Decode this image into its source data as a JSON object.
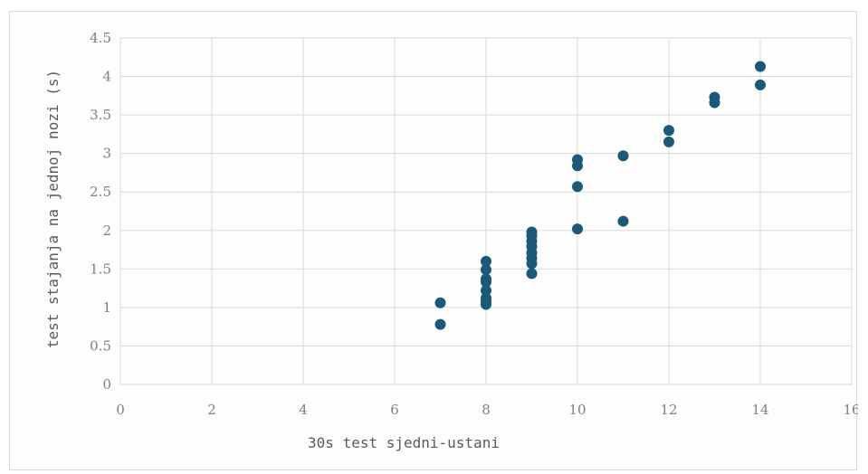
{
  "chart_data": {
    "type": "scatter",
    "title": "",
    "xlabel": "30s test sjedni-ustani",
    "ylabel": "test stajanja na jednoj nozi (s)",
    "xlim": [
      0,
      16
    ],
    "ylim": [
      0,
      4.5
    ],
    "grid": true,
    "x_ticks": [
      "0",
      "2",
      "4",
      "6",
      "8",
      "10",
      "12",
      "14",
      "16"
    ],
    "y_ticks": [
      "0",
      "0.5",
      "1",
      "1.5",
      "2",
      "2.5",
      "3",
      "3.5",
      "4",
      "4.5"
    ],
    "color": "#1a5a78",
    "points": [
      {
        "x": 7,
        "y": 1.06
      },
      {
        "x": 7,
        "y": 0.78
      },
      {
        "x": 8,
        "y": 1.6
      },
      {
        "x": 8,
        "y": 1.49
      },
      {
        "x": 8,
        "y": 1.37
      },
      {
        "x": 8,
        "y": 1.33
      },
      {
        "x": 8,
        "y": 1.22
      },
      {
        "x": 8,
        "y": 1.12
      },
      {
        "x": 8,
        "y": 1.08
      },
      {
        "x": 8,
        "y": 1.04
      },
      {
        "x": 9,
        "y": 1.98
      },
      {
        "x": 9,
        "y": 1.93
      },
      {
        "x": 9,
        "y": 1.86
      },
      {
        "x": 9,
        "y": 1.79
      },
      {
        "x": 9,
        "y": 1.71
      },
      {
        "x": 9,
        "y": 1.64
      },
      {
        "x": 9,
        "y": 1.57
      },
      {
        "x": 9,
        "y": 1.44
      },
      {
        "x": 10,
        "y": 2.92
      },
      {
        "x": 10,
        "y": 2.84
      },
      {
        "x": 10,
        "y": 2.57
      },
      {
        "x": 10,
        "y": 2.02
      },
      {
        "x": 11,
        "y": 2.97
      },
      {
        "x": 11,
        "y": 2.12
      },
      {
        "x": 12,
        "y": 3.3
      },
      {
        "x": 12,
        "y": 3.15
      },
      {
        "x": 13,
        "y": 3.73
      },
      {
        "x": 13,
        "y": 3.66
      },
      {
        "x": 14,
        "y": 4.13
      },
      {
        "x": 14,
        "y": 3.89
      }
    ]
  }
}
